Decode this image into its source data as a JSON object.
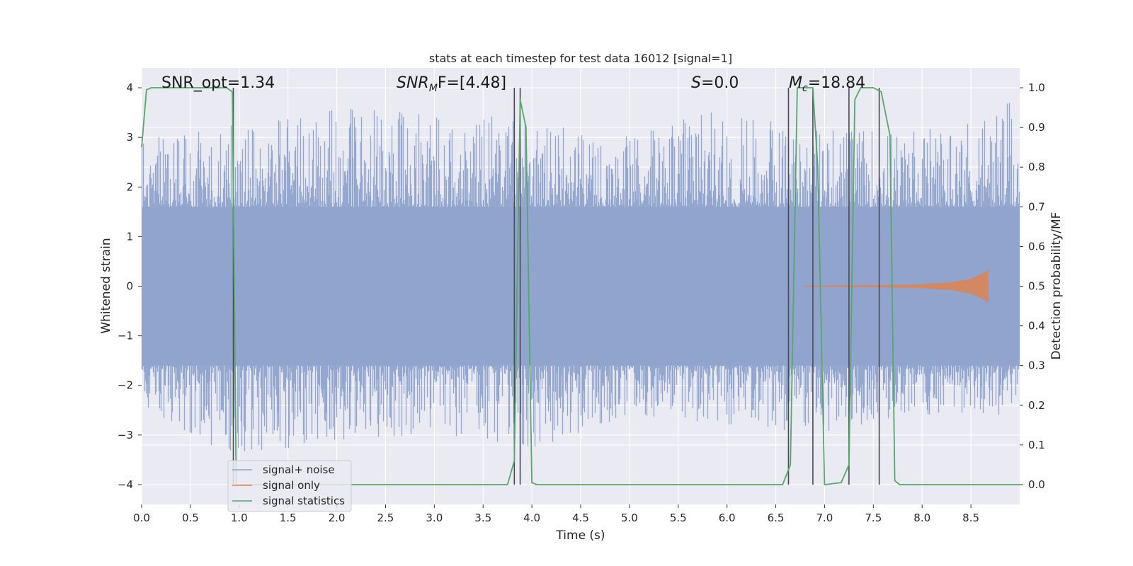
{
  "chart_data": {
    "type": "line",
    "title": "stats at each timestep for test data 16012 [signal=1]",
    "xlabel": "Time (s)",
    "ylabel_left": "Whitened strain",
    "ylabel_right": "Detection probability/MF",
    "xlim": [
      0.0,
      9.0
    ],
    "ylim_left": [
      -4.4,
      4.4
    ],
    "ylim_right": [
      -0.05,
      1.05
    ],
    "x_ticks": [
      "0.0",
      "0.5",
      "1.0",
      "1.5",
      "2.0",
      "2.5",
      "3.0",
      "3.5",
      "4.0",
      "4.5",
      "5.0",
      "5.5",
      "6.0",
      "6.5",
      "7.0",
      "7.5",
      "8.0",
      "8.5"
    ],
    "y_ticks_left": [
      "4",
      "3",
      "2",
      "1",
      "0",
      "−1",
      "−2",
      "−3",
      "−4"
    ],
    "y_ticks_right": [
      "1.0",
      "0.9",
      "0.8",
      "0.7",
      "0.6",
      "0.5",
      "0.4",
      "0.3",
      "0.2",
      "0.1",
      "0.0"
    ],
    "grid": true,
    "legend": {
      "location": "lower-left",
      "entries": [
        "signal+ noise",
        "signal only",
        "signal statistics"
      ]
    },
    "annotations": {
      "snr_opt": "SNR_opt=1.34",
      "snr_mf_main": "SNR",
      "snr_mf_sub": "M",
      "snr_mf_rest": "F=[4.48]",
      "s_main": "S",
      "s_rest": "=0.0",
      "mc_main": "M",
      "mc_sub": "c",
      "mc_rest": "=18.84"
    },
    "colors": {
      "noise": "#8fa3cc",
      "signal": "#dd8452",
      "statistics": "#55a868",
      "vlines": "#4a4a55",
      "background": "#eaeaf2",
      "grid": "#ffffff"
    },
    "series": [
      {
        "name": "signal+ noise",
        "description_type": "noise_band",
        "x_range": [
          0.0,
          9.0
        ],
        "core_amplitude": 1.6,
        "peak_amplitude": 3.9,
        "values_sample": {
          "x": [
            0.0,
            1.0,
            2.0,
            3.0,
            4.0,
            5.0,
            6.0,
            7.0,
            8.0,
            8.9
          ],
          "y_max": [
            3.0,
            3.3,
            3.6,
            3.5,
            3.4,
            3.1,
            3.6,
            3.2,
            3.2,
            3.7
          ],
          "y_min": [
            -2.6,
            -3.5,
            -3.1,
            -3.0,
            -3.3,
            -2.6,
            -2.8,
            -3.0,
            -2.6,
            -2.6
          ]
        }
      },
      {
        "name": "signal only",
        "description_type": "chirp",
        "x_start": 6.8,
        "x_end": 8.68,
        "max_amplitude": 0.32,
        "x_sample": [
          6.8,
          7.5,
          8.0,
          8.3,
          8.5,
          8.6,
          8.68
        ],
        "amplitude_sample": [
          0.01,
          0.02,
          0.04,
          0.08,
          0.15,
          0.24,
          0.32
        ]
      },
      {
        "name": "signal statistics",
        "x": [
          0.0,
          0.05,
          0.1,
          0.3,
          0.6,
          0.87,
          0.93,
          0.97,
          3.75,
          3.82,
          3.88,
          3.94,
          4.0,
          4.05,
          6.57,
          6.65,
          6.72,
          6.78,
          6.88,
          6.93,
          7.0,
          7.17,
          7.25,
          7.31,
          7.37,
          7.5,
          7.58,
          7.67,
          7.72,
          7.77,
          8.0,
          9.0
        ],
        "y": [
          0.85,
          0.995,
          1.0,
          1.0,
          1.0,
          1.0,
          0.99,
          0.0,
          0.0,
          0.06,
          0.97,
          0.9,
          0.005,
          0.0,
          0.0,
          0.05,
          1.0,
          1.0,
          1.0,
          0.8,
          0.0,
          0.005,
          0.05,
          0.97,
          1.0,
          1.0,
          0.99,
          0.88,
          0.01,
          0.0,
          0.0,
          0.0
        ]
      }
    ],
    "vertical_lines_x": [
      0.94,
      3.82,
      3.88,
      6.63,
      6.88,
      7.25,
      7.56
    ]
  }
}
